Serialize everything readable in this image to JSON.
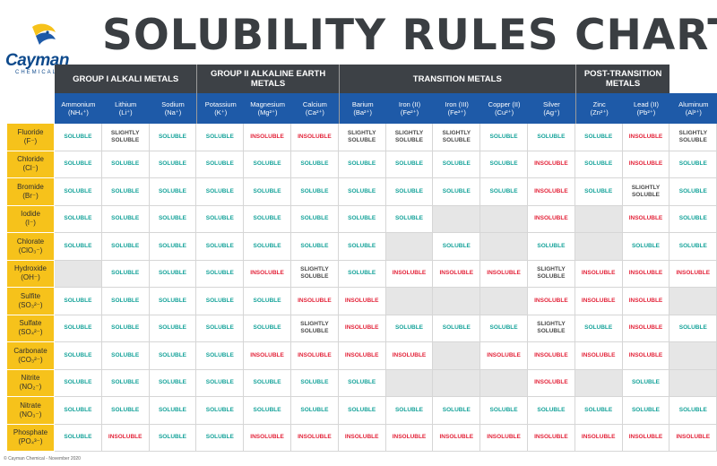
{
  "brand": {
    "name": "Cayman",
    "sub": "CHEMICAL"
  },
  "title": "SOLUBILITY RULES CHART",
  "groups": [
    {
      "label": "GROUP I ALKALI METALS",
      "span": 3
    },
    {
      "label": "GROUP II ALKALINE EARTH METALS",
      "span": 3
    },
    {
      "label": "TRANSITION METALS",
      "span": 5
    },
    {
      "label": "POST-TRANSITION METALS",
      "span": 2
    }
  ],
  "cations": [
    {
      "name": "Ammonium",
      "ion": "(NH₄⁺)"
    },
    {
      "name": "Lithium",
      "ion": "(Li⁺)"
    },
    {
      "name": "Sodium",
      "ion": "(Na⁺)"
    },
    {
      "name": "Potassium",
      "ion": "(K⁺)"
    },
    {
      "name": "Magnesium",
      "ion": "(Mg²⁺)"
    },
    {
      "name": "Calcium",
      "ion": "(Ca²⁺)"
    },
    {
      "name": "Barium",
      "ion": "(Ba²⁺)"
    },
    {
      "name": "Iron (II)",
      "ion": "(Fe²⁺)"
    },
    {
      "name": "Iron (III)",
      "ion": "(Fe³⁺)"
    },
    {
      "name": "Copper (II)",
      "ion": "(Cu²⁺)"
    },
    {
      "name": "Silver",
      "ion": "(Ag⁺)"
    },
    {
      "name": "Zinc",
      "ion": "(Zn²⁺)"
    },
    {
      "name": "Lead (II)",
      "ion": "(Pb²⁺)"
    },
    {
      "name": "Aluminum",
      "ion": "(Al³⁺)"
    }
  ],
  "anions": [
    {
      "name": "Fluoride",
      "ion": "(F⁻)"
    },
    {
      "name": "Chloride",
      "ion": "(Cl⁻)"
    },
    {
      "name": "Bromide",
      "ion": "(Br⁻)"
    },
    {
      "name": "Iodide",
      "ion": "(I⁻)"
    },
    {
      "name": "Chlorate",
      "ion": "(ClO₃⁻)"
    },
    {
      "name": "Hydroxide",
      "ion": "(OH⁻)"
    },
    {
      "name": "Sulfite",
      "ion": "(SO₃²⁻)"
    },
    {
      "name": "Sulfate",
      "ion": "(SO₄²⁻)"
    },
    {
      "name": "Carbonate",
      "ion": "(CO₃²⁻)"
    },
    {
      "name": "Nitrite",
      "ion": "(NO₂⁻)"
    },
    {
      "name": "Nitrate",
      "ion": "(NO₃⁻)"
    },
    {
      "name": "Phosphate",
      "ion": "(PO₄³⁻)"
    }
  ],
  "legend_words": {
    "S": "SOLUBLE",
    "I": "INSOLUBLE",
    "L": "SLIGHTLY SOLUBLE"
  },
  "colors": {
    "soluble": "#16a39a",
    "insoluble": "#e3243a",
    "slightly": "#4a4a4a",
    "empty": "#e6e6e6",
    "cation_header": "#1e5aa8",
    "group_header": "#3d4146",
    "anion_header": "#f6c21b"
  },
  "chart_data": {
    "type": "table",
    "title": "SOLUBILITY RULES CHART",
    "rows": [
      [
        "S",
        "L",
        "S",
        "S",
        "I",
        "I",
        "L",
        "L",
        "L",
        "S",
        "S",
        "S",
        "I",
        "L"
      ],
      [
        "S",
        "S",
        "S",
        "S",
        "S",
        "S",
        "S",
        "S",
        "S",
        "S",
        "I",
        "S",
        "I",
        "S"
      ],
      [
        "S",
        "S",
        "S",
        "S",
        "S",
        "S",
        "S",
        "S",
        "S",
        "S",
        "I",
        "S",
        "L",
        "S"
      ],
      [
        "S",
        "S",
        "S",
        "S",
        "S",
        "S",
        "S",
        "S",
        "",
        "",
        "I",
        "",
        "I",
        "S"
      ],
      [
        "S",
        "S",
        "S",
        "S",
        "S",
        "S",
        "S",
        "",
        "S",
        "",
        "S",
        "",
        "S",
        "S"
      ],
      [
        "",
        "S",
        "S",
        "S",
        "I",
        "L",
        "S",
        "I",
        "I",
        "I",
        "L",
        "I",
        "I",
        "I"
      ],
      [
        "S",
        "S",
        "S",
        "S",
        "S",
        "I",
        "I",
        "",
        "",
        "",
        "I",
        "I",
        "I",
        ""
      ],
      [
        "S",
        "S",
        "S",
        "S",
        "S",
        "L",
        "I",
        "S",
        "S",
        "S",
        "L",
        "S",
        "I",
        "S"
      ],
      [
        "S",
        "S",
        "S",
        "S",
        "I",
        "I",
        "I",
        "I",
        "",
        "I",
        "I",
        "I",
        "I",
        ""
      ],
      [
        "S",
        "S",
        "S",
        "S",
        "S",
        "S",
        "S",
        "",
        "",
        "",
        "I",
        "",
        "S",
        ""
      ],
      [
        "S",
        "S",
        "S",
        "S",
        "S",
        "S",
        "S",
        "S",
        "S",
        "S",
        "S",
        "S",
        "S",
        "S"
      ],
      [
        "S",
        "I",
        "S",
        "S",
        "I",
        "I",
        "I",
        "I",
        "I",
        "I",
        "I",
        "I",
        "I",
        "I"
      ]
    ]
  },
  "footer": "© Cayman Chemical - November 2020"
}
